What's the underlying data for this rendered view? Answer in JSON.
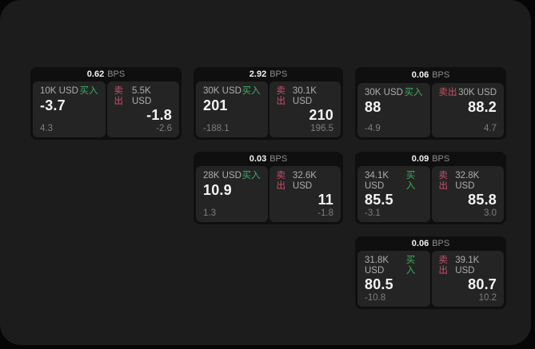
{
  "colors": {
    "window_bg": "#1c1c1c",
    "card_bg": "#0f0f0f",
    "panel_bg": "#242424",
    "buy_green": "#3fae63",
    "sell_red": "#c8506a"
  },
  "cards": [
    {
      "bps_value": "0.62",
      "bps_label": "BPS",
      "buy": {
        "amount": "10K USD",
        "side": "买入",
        "price": "-3.7",
        "change": "4.3"
      },
      "sell": {
        "side": "卖出",
        "amount": "5.5K USD",
        "price": "-1.8",
        "change": "-2.6"
      }
    },
    {
      "bps_value": "2.92",
      "bps_label": "BPS",
      "buy": {
        "amount": "30K USD",
        "side": "买入",
        "price": "201",
        "change": "-188.1"
      },
      "sell": {
        "side": "卖出",
        "amount": "30.1K USD",
        "price": "210",
        "change": "196.5"
      }
    },
    {
      "bps_value": "0.06",
      "bps_label": "BPS",
      "buy": {
        "amount": "30K USD",
        "side": "买入",
        "price": "88",
        "change": "-4.9"
      },
      "sell": {
        "side": "卖出",
        "amount": "30K USD",
        "price": "88.2",
        "change": "4.7"
      }
    },
    {
      "bps_value": "0.03",
      "bps_label": "BPS",
      "buy": {
        "amount": "28K USD",
        "side": "买入",
        "price": "10.9",
        "change": "1.3"
      },
      "sell": {
        "side": "卖出",
        "amount": "32.6K USD",
        "price": "11",
        "change": "-1.8"
      }
    },
    {
      "bps_value": "0.09",
      "bps_label": "BPS",
      "buy": {
        "amount": "34.1K USD",
        "side": "买入",
        "price": "85.5",
        "change": "-3.1"
      },
      "sell": {
        "side": "卖出",
        "amount": "32.8K USD",
        "price": "85.8",
        "change": "3.0"
      }
    },
    {
      "bps_value": "0.06",
      "bps_label": "BPS",
      "buy": {
        "amount": "31.8K USD",
        "side": "买入",
        "price": "80.5",
        "change": "-10.8"
      },
      "sell": {
        "side": "卖出",
        "amount": "39.1K USD",
        "price": "80.7",
        "change": "10.2"
      }
    }
  ]
}
